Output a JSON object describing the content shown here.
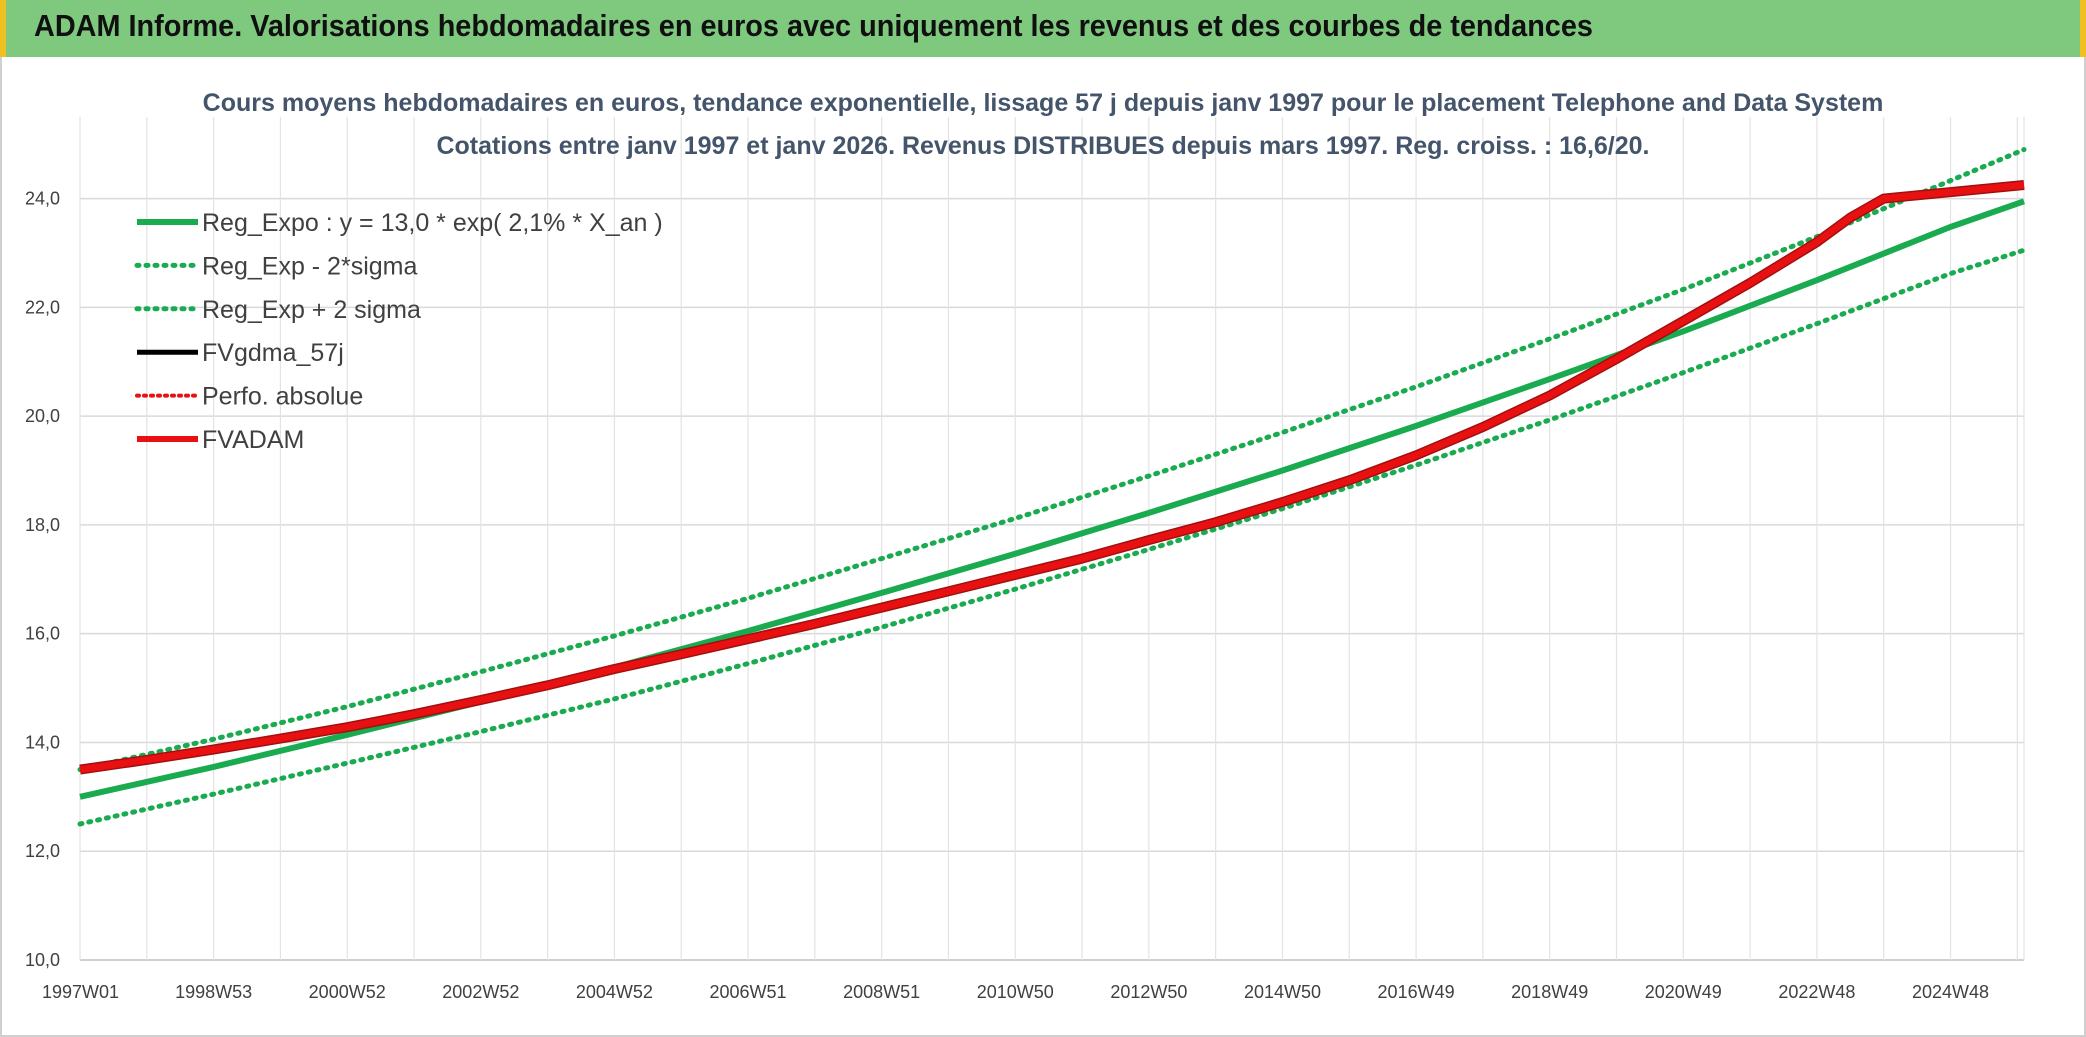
{
  "banner": {
    "title": "ADAM Informe. Valorisations hebdomadaires en euros avec uniquement les revenus et des courbes de tendances"
  },
  "colors": {
    "banner_bg": "#7fc97f",
    "accent_yellow": "#f0c020",
    "reg_green": "#1aab50",
    "fvadam_red": "#e81010",
    "fvadam_edge": "#a01010",
    "title_text": "#44546a"
  },
  "chart_data": {
    "type": "line",
    "title": "Cours moyens hebdomadaires en euros, tendance exponentielle, lissage 57 j depuis janv 1997 pour le placement Telephone and Data System",
    "subtitle": "Cotations entre janv 1997 et janv 2026. Revenus DISTRIBUES depuis mars 1997. Reg. croiss. : 16,6/20.",
    "xlabel": "",
    "ylabel": "",
    "ylim": [
      10,
      25.5
    ],
    "yticks": [
      "10,0",
      "12,0",
      "14,0",
      "16,0",
      "18,0",
      "20,0",
      "22,0",
      "24,0"
    ],
    "xticks": [
      "1997W01",
      "1998W53",
      "2000W52",
      "2002W52",
      "2004W52",
      "2006W51",
      "2008W51",
      "2010W50",
      "2012W50",
      "2014W50",
      "2016W49",
      "2018W49",
      "2020W49",
      "2022W48",
      "2024W48"
    ],
    "xlim_years": [
      0,
      29.1
    ],
    "grid": true,
    "legend_position": "top-left",
    "legend": [
      {
        "label": "Reg_Expo : y = 13,0 * exp( 2,1% *  X_an )",
        "style": "solid-green"
      },
      {
        "label": "Reg_Exp - 2*sigma",
        "style": "dotted-green"
      },
      {
        "label": "Reg_Exp + 2 sigma",
        "style": "dotted-green"
      },
      {
        "label": "FVgdma_57j",
        "style": "solid-black"
      },
      {
        "label": "Perfo. absolue",
        "style": "dotted-red"
      },
      {
        "label": "FVADAM",
        "style": "solid-red"
      }
    ],
    "series": [
      {
        "name": "Reg_Expo : y = 13,0 * exp( 2,1% *  X_an )",
        "x": [
          0,
          2,
          4,
          6,
          8,
          10,
          12,
          14,
          16,
          18,
          20,
          22,
          24,
          26,
          28,
          29.1
        ],
        "values": [
          13.0,
          13.55,
          14.14,
          14.75,
          15.38,
          16.05,
          16.75,
          17.47,
          18.22,
          19.0,
          19.82,
          20.68,
          21.56,
          22.5,
          23.48,
          23.95
        ]
      },
      {
        "name": "Reg_Exp - 2*sigma",
        "x": [
          0,
          2,
          4,
          6,
          8,
          10,
          12,
          14,
          16,
          18,
          20,
          22,
          24,
          26,
          28,
          29.1
        ],
        "values": [
          12.5,
          13.05,
          13.62,
          14.2,
          14.8,
          15.45,
          16.12,
          16.82,
          17.55,
          18.3,
          19.1,
          19.93,
          20.8,
          21.7,
          22.62,
          23.05
        ]
      },
      {
        "name": "Reg_Exp + 2 sigma",
        "x": [
          0,
          2,
          4,
          6,
          8,
          10,
          12,
          14,
          16,
          18,
          20,
          22,
          24,
          26,
          28,
          29.1
        ],
        "values": [
          13.5,
          14.06,
          14.66,
          15.3,
          15.96,
          16.65,
          17.38,
          18.12,
          18.9,
          19.7,
          20.54,
          21.42,
          22.33,
          23.3,
          24.33,
          24.9
        ]
      },
      {
        "name": "FVADAM",
        "x": [
          0,
          1,
          2,
          3,
          4,
          5,
          6,
          7,
          8,
          9,
          10,
          11,
          12,
          13,
          14,
          15,
          16,
          17,
          18,
          19,
          20,
          21,
          22,
          23,
          24,
          25,
          26,
          26.5,
          27,
          28,
          29.1
        ],
        "values": [
          13.5,
          13.68,
          13.87,
          14.07,
          14.28,
          14.52,
          14.78,
          15.05,
          15.35,
          15.62,
          15.9,
          16.18,
          16.48,
          16.78,
          17.08,
          17.38,
          17.72,
          18.05,
          18.42,
          18.82,
          19.28,
          19.8,
          20.38,
          21.05,
          21.75,
          22.45,
          23.2,
          23.65,
          24.0,
          24.12,
          24.25
        ]
      }
    ]
  }
}
